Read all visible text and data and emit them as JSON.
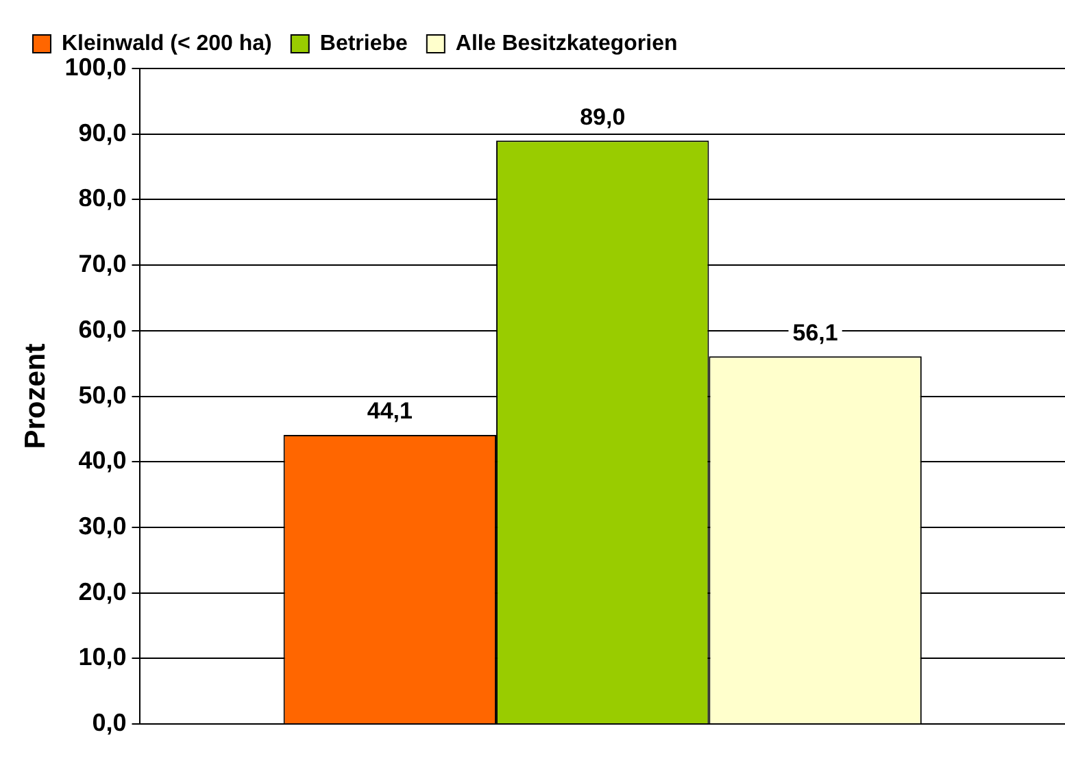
{
  "chart_data": {
    "type": "bar",
    "ylabel": "Prozent",
    "categories": [
      null
    ],
    "series": [
      {
        "name": "Kleinwald (< 200 ha)",
        "color": "#ff6600",
        "values": [
          44.1
        ],
        "value_labels": [
          "44,1"
        ]
      },
      {
        "name": "Betriebe",
        "color": "#99cc00",
        "values": [
          89.0
        ],
        "value_labels": [
          "89,0"
        ]
      },
      {
        "name": "Alle Besitzkategorien",
        "color": "#ffffcc",
        "values": [
          56.1
        ],
        "value_labels": [
          "56,1"
        ]
      }
    ],
    "ylim": [
      0,
      100
    ],
    "yticks": [
      {
        "value": 0,
        "label": "0,0"
      },
      {
        "value": 10,
        "label": "10,0"
      },
      {
        "value": 20,
        "label": "20,0"
      },
      {
        "value": 30,
        "label": "30,0"
      },
      {
        "value": 40,
        "label": "40,0"
      },
      {
        "value": 50,
        "label": "50,0"
      },
      {
        "value": 60,
        "label": "60,0"
      },
      {
        "value": 70,
        "label": "70,0"
      },
      {
        "value": 80,
        "label": "80,0"
      },
      {
        "value": 90,
        "label": "90,0"
      },
      {
        "value": 100,
        "label": "100,0"
      }
    ],
    "grid": "y",
    "legend": "top"
  }
}
